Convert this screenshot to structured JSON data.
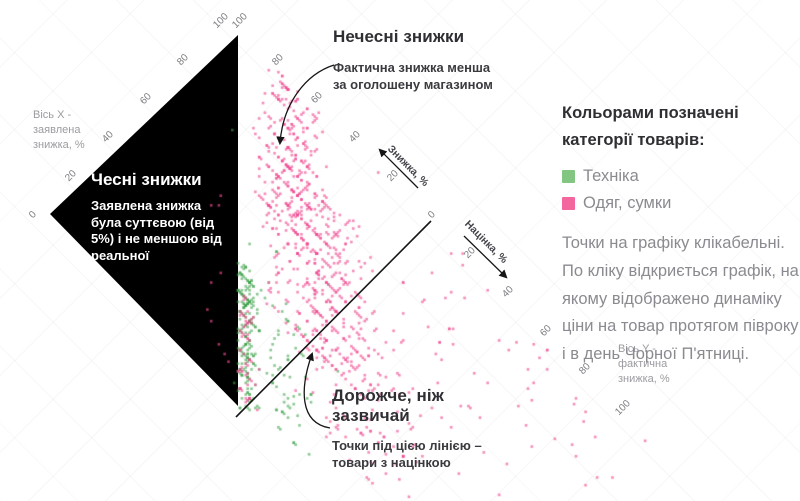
{
  "annotations": {
    "dishonest": {
      "title": "Нечесні знижки",
      "desc": "Фактична знижка менша за оголошену магазином"
    },
    "honest": {
      "title": "Чесні знижки",
      "desc": "Заявлена знижка була суттєвою (від 5%) і не меншою від реальної"
    },
    "pricier": {
      "title": "Дорожче, ніж зазвичай",
      "desc": "Точки під цією лінією – товари з націнкою"
    }
  },
  "sidebar": {
    "legend_intro": "Кольорами позначені категорії товарів:",
    "legend": [
      {
        "label": "Техніка",
        "color": "#82c682"
      },
      {
        "label": "Одяг, сумки",
        "color": "#f4679e"
      }
    ],
    "note": "Точки на графіку клікабельні. По кліку відкриється графік, на якому відображено динаміку ціни на товар протягом півроку і в день Чорної П'ятниці."
  },
  "axes": {
    "x_name": "Вісь X - заявлена знижка, %",
    "y_name": "Вісь Y - фактична знижка, %",
    "x_ticks": [
      0,
      20,
      40,
      60,
      80,
      100
    ],
    "diag_ticks": [
      100,
      80,
      60,
      40,
      20,
      0,
      20,
      40,
      60,
      80,
      100
    ],
    "discount_arrow_label": "Знижка, %",
    "markup_arrow_label": "Націнка, %"
  },
  "chart_data": {
    "type": "scatter",
    "title": "",
    "presentation": "scatter rotated 45deg; claimed-discount axis runs up-right, actual-discount axis down-right; black triangle marks honest region (claimed >=5% and not less than real); line claimed=actual separates discounted goods from marked-up goods",
    "x_axis": {
      "label": "Вісь X - заявлена знижка, %",
      "range": [
        0,
        100
      ]
    },
    "y_axis": {
      "label": "Вісь Y - фактична знижка, %",
      "range": [
        -130,
        100
      ]
    },
    "grid": true,
    "seed": 20171124,
    "series": [
      {
        "name": "Техніка",
        "color": "#3fa24b",
        "opacity": 0.6,
        "snap_claimed5": 0.45,
        "snap_actual5": 0.35,
        "clusters": [
          {
            "n": 230,
            "claimed": [
              2,
              38
            ],
            "gap": [
              -2,
              9
            ]
          },
          {
            "n": 60,
            "claimed": [
              2,
              40
            ],
            "gap": [
              6,
              40
            ]
          },
          {
            "n": 14,
            "claimed": [
              15,
              70
            ],
            "gap": [
              -8,
              55
            ]
          }
        ]
      },
      {
        "name": "Одяг, сумки",
        "color": "#ef4f93",
        "opacity": 0.65,
        "snap_claimed5": 0.55,
        "snap_actual5": 0.4,
        "clusters": [
          {
            "n": 300,
            "claimed": [
              55,
              97
            ],
            "gap": [
              5,
              48
            ]
          },
          {
            "n": 400,
            "claimed": [
              32,
              78
            ],
            "gap": [
              8,
              75
            ]
          },
          {
            "n": 120,
            "claimed": [
              15,
              60
            ],
            "gap": [
              25,
              110
            ]
          },
          {
            "n": 80,
            "claimed": [
              40,
              98
            ],
            "gap": [
              60,
              230
            ]
          },
          {
            "n": 60,
            "claimed": [
              3,
              30
            ],
            "gap": [
              -2,
              10
            ]
          },
          {
            "n": 10,
            "claimed": [
              5,
              60
            ],
            "gap": [
              -20,
              -3
            ]
          }
        ]
      }
    ]
  }
}
